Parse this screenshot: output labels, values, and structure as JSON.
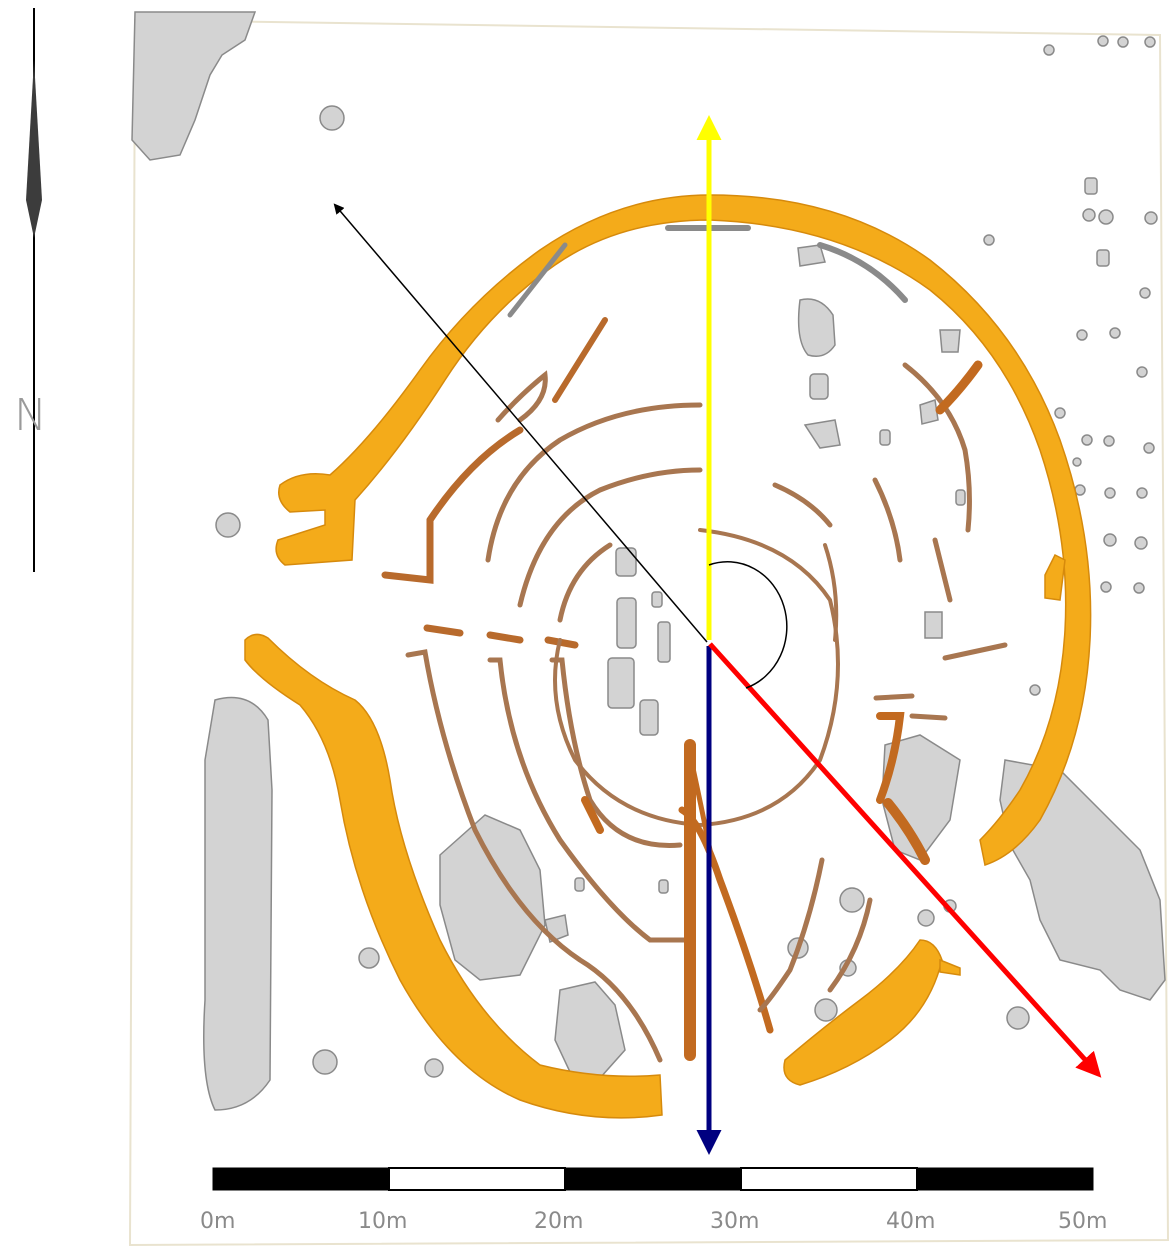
{
  "north_arrow": {
    "letter": "N",
    "icon": "north-arrow-icon"
  },
  "scale_bar": {
    "labels": [
      "0m",
      "10m",
      "20m",
      "30m",
      "40m",
      "50m"
    ],
    "segments": [
      "black",
      "white",
      "black",
      "white",
      "black"
    ]
  },
  "colors": {
    "outer_ditch": "#f4ab1a",
    "inner_rings": "#a87650",
    "dark_rings": "#c26a20",
    "stone_grey": "#d3d3d3",
    "outline": "#8a8a8a",
    "arrow_north": "#ffff00",
    "arrow_south": "#000080",
    "arrow_se": "#ff0000",
    "arrow_nw": "#000000",
    "frame": "#e9e3cf"
  },
  "annotations": {
    "arrows": [
      "yellow-north-arrow",
      "navy-south-arrow",
      "red-southeast-arrow",
      "black-northwest-arrow"
    ],
    "angle_arc": "angle-arc-icon"
  }
}
